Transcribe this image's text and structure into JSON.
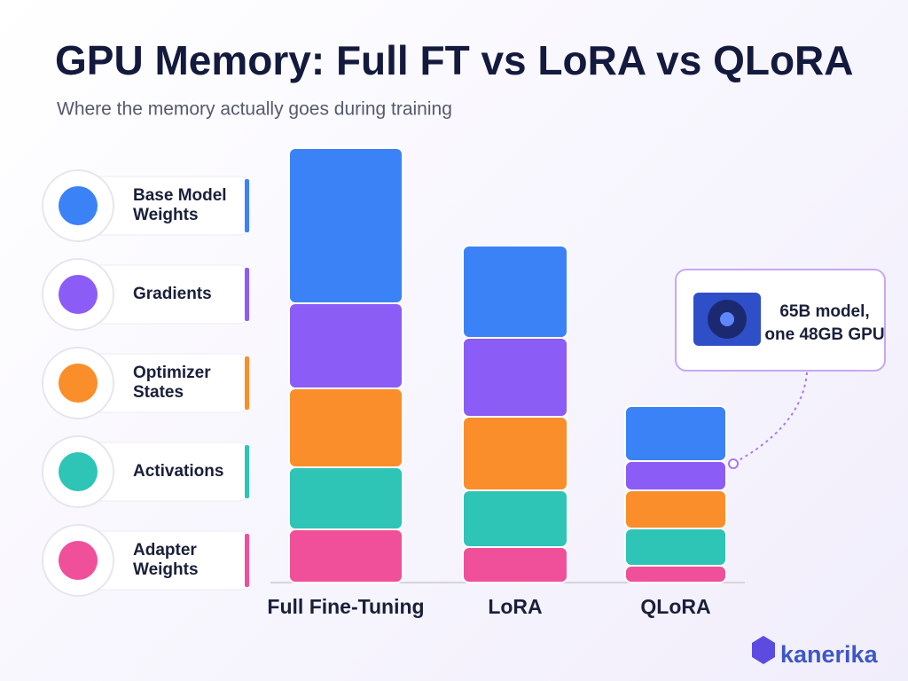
{
  "chart_data": {
    "type": "stacked_bar",
    "title": "GPU Memory: Full FT vs LoRA vs QLoRA",
    "subtitle": "Where the memory actually goes during training",
    "categories": [
      "Full Fine-Tuning",
      "LoRA",
      "QLoRA"
    ],
    "series": [
      {
        "name": "Base Model Weights",
        "color": "#3b82f6",
        "values": [
          175,
          104,
          62
        ]
      },
      {
        "name": "Gradients",
        "color": "#8b5cf6",
        "values": [
          96,
          89,
          33
        ]
      },
      {
        "name": "Optimizer States",
        "color": "#f98e2a",
        "values": [
          89,
          83,
          43
        ]
      },
      {
        "name": "Activations",
        "color": "#2ec4b6",
        "values": [
          70,
          64,
          42
        ]
      },
      {
        "name": "Adapter Weights",
        "color": "#f0509a",
        "values": [
          60,
          40,
          19
        ]
      }
    ],
    "ylim": [
      0,
      500
    ],
    "annotation": [
      "65B model,",
      "one 48GB GPU"
    ],
    "brand": "kanerika"
  }
}
